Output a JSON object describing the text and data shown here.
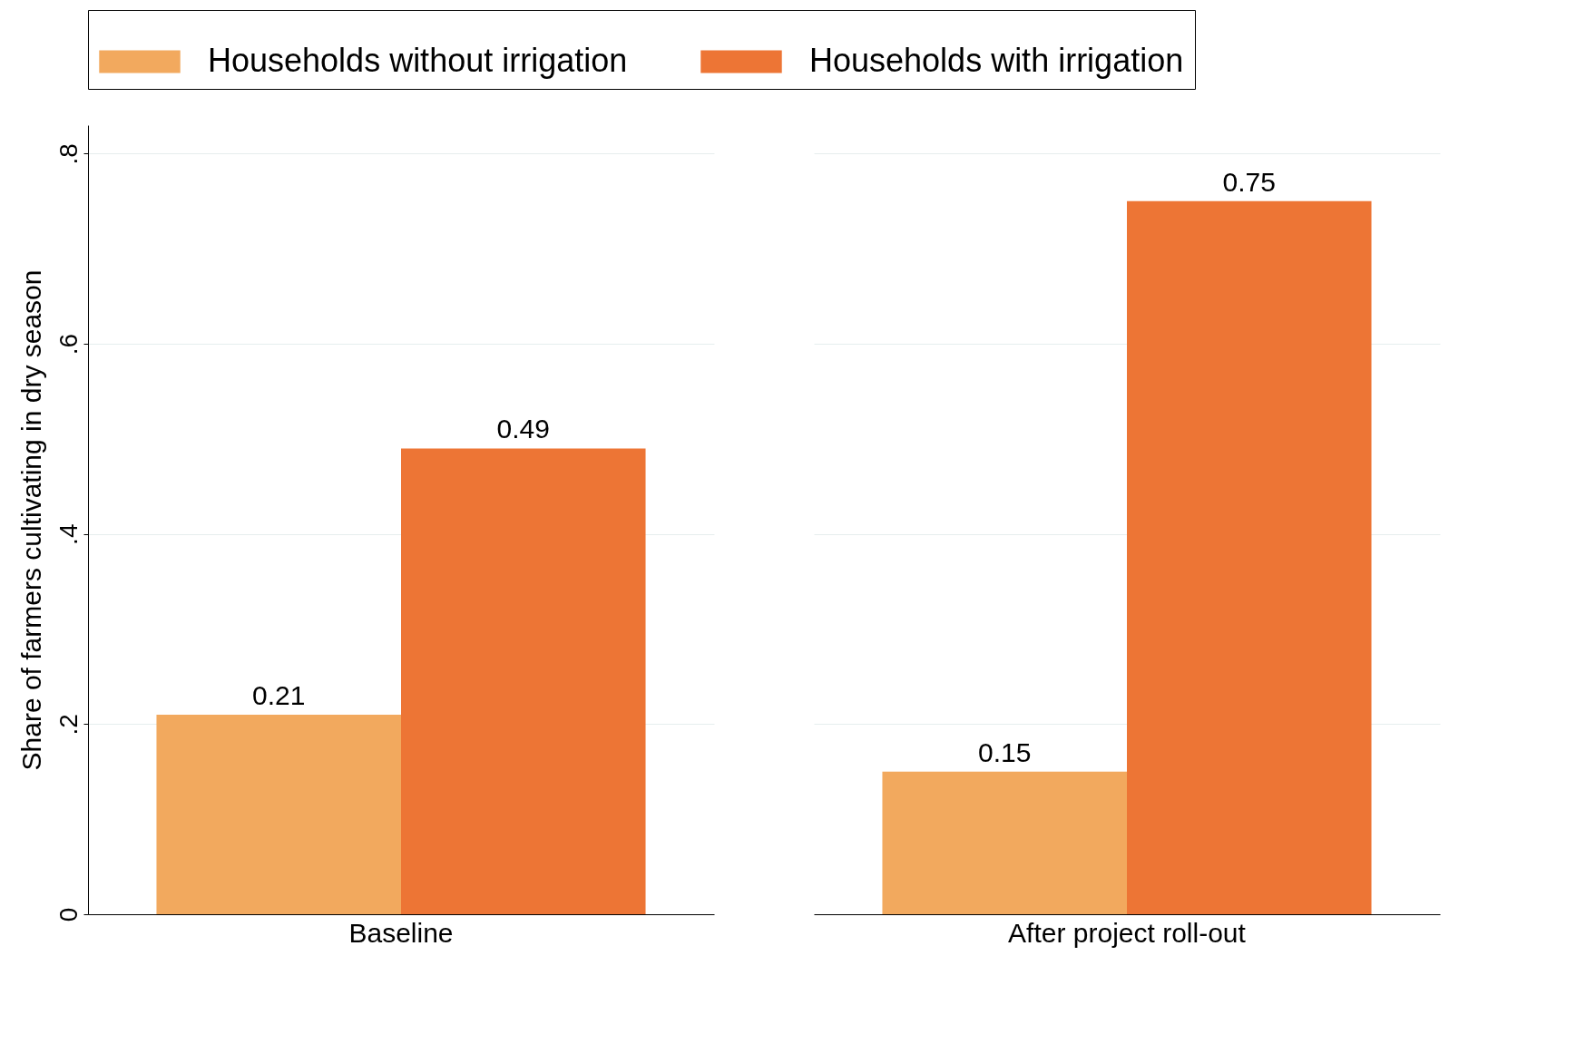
{
  "chart_data": {
    "type": "bar",
    "ylabel": "Share of farmers cultivating in dry season",
    "categories": [
      "Baseline",
      "After project roll-out"
    ],
    "series": [
      {
        "name": "Households without irrigation",
        "color": "#f2a95e",
        "values": [
          0.21,
          0.15
        ]
      },
      {
        "name": "Households with irrigation",
        "color": "#ed7535",
        "values": [
          0.49,
          0.75
        ]
      }
    ],
    "ylim": [
      0,
      0.83
    ],
    "yticks": [
      0,
      {
        "value": 0.2,
        "label": ".2"
      },
      {
        "value": 0.4,
        "label": ".4"
      },
      {
        "value": 0.6,
        "label": ".6"
      },
      {
        "value": 0.8,
        "label": ".8"
      }
    ],
    "grid": "y",
    "legend": "top",
    "data_labels": true
  }
}
